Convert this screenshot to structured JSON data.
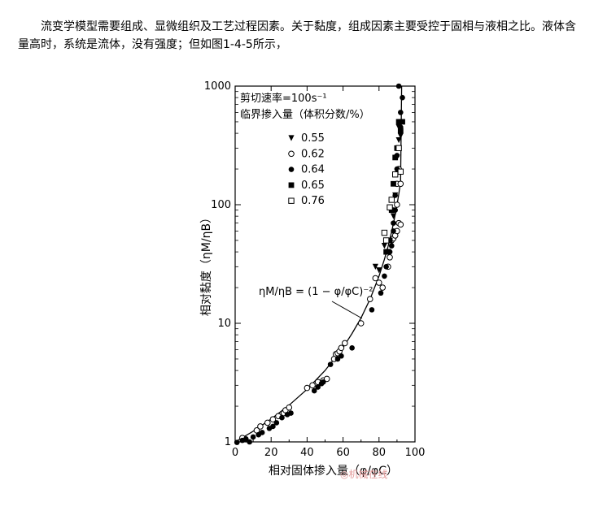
{
  "article": {
    "paragraph": "流变学模型需要组成、显微组织及工艺过程因素。关于黏度，组成因素主要受控于固相与液相之比。液体含量高时，系统是流体，没有强度；但如图1-4-5所示，"
  },
  "watermark": "◎机械在线",
  "chart_data": {
    "type": "scatter",
    "title": "",
    "xlabel": "相对固体掺入量（φ/φC）",
    "ylabel": "相对黏度（ηM/ηB）",
    "xlim": [
      0,
      100
    ],
    "ylim": [
      1,
      1000
    ],
    "yscale": "log",
    "x_ticks": [
      "0",
      "20",
      "40",
      "60",
      "80",
      "100"
    ],
    "y_ticks": [
      "1",
      "10",
      "100",
      "1000"
    ],
    "legend": {
      "placement": "top-left",
      "header_line1": "剪切速率=100s⁻¹",
      "header_line2": "临界掺入量（体积分数/%）",
      "entries": [
        "0.55",
        "0.62",
        "0.64",
        "0.65",
        "0.76"
      ]
    },
    "annotation": "ηM/ηB = (1 − φ/φC)⁻²",
    "curve": {
      "name": "",
      "x": [
        0,
        10,
        20,
        30,
        40,
        50,
        60,
        65,
        70,
        75,
        80,
        83,
        85,
        87,
        88,
        89,
        90,
        91,
        92
      ],
      "y": [
        1,
        1.23,
        1.56,
        2.04,
        2.78,
        4.0,
        6.25,
        8.2,
        11.1,
        16,
        25,
        34.6,
        44.4,
        59.2,
        69.4,
        82.6,
        100,
        123,
        156
      ]
    },
    "series": [
      {
        "name": "0.55",
        "marker": "triangle-down",
        "points": [
          [
            78,
            30
          ],
          [
            80,
            28
          ],
          [
            83,
            45
          ],
          [
            85,
            40
          ],
          [
            88,
            80
          ],
          [
            89,
            120
          ],
          [
            90,
            250
          ],
          [
            91,
            350
          ],
          [
            91,
            450
          ],
          [
            92,
            380
          ]
        ]
      },
      {
        "name": "0.62",
        "marker": "circle-open",
        "points": [
          [
            4,
            1.08
          ],
          [
            12,
            1.25
          ],
          [
            14,
            1.35
          ],
          [
            18,
            1.45
          ],
          [
            21,
            1.55
          ],
          [
            24,
            1.65
          ],
          [
            27,
            1.75
          ],
          [
            28,
            1.85
          ],
          [
            30,
            1.95
          ],
          [
            40,
            2.85
          ],
          [
            43,
            3.0
          ],
          [
            46,
            3.2
          ],
          [
            49,
            3.3
          ],
          [
            51,
            3.4
          ],
          [
            55,
            5.0
          ],
          [
            56,
            5.5
          ],
          [
            57,
            5.6
          ],
          [
            58,
            5.8
          ],
          [
            59,
            6.2
          ],
          [
            61,
            6.8
          ],
          [
            70,
            10
          ],
          [
            75,
            16
          ],
          [
            78,
            24
          ],
          [
            80,
            22
          ],
          [
            82,
            20
          ],
          [
            85,
            30
          ],
          [
            86,
            36
          ],
          [
            87,
            50
          ],
          [
            88,
            52
          ],
          [
            89,
            55
          ],
          [
            90,
            60
          ],
          [
            91,
            70
          ],
          [
            92,
            68
          ],
          [
            90,
            100
          ],
          [
            90,
            150
          ],
          [
            91,
            200
          ],
          [
            92,
            150
          ]
        ]
      },
      {
        "name": "0.64",
        "marker": "circle-filled",
        "points": [
          [
            1,
            0.99
          ],
          [
            4,
            1.03
          ],
          [
            6,
            1.06
          ],
          [
            8,
            1.0
          ],
          [
            10,
            1.1
          ],
          [
            13,
            1.15
          ],
          [
            15,
            1.2
          ],
          [
            19,
            1.3
          ],
          [
            21,
            1.35
          ],
          [
            23,
            1.45
          ],
          [
            26,
            1.6
          ],
          [
            29,
            1.7
          ],
          [
            31,
            1.75
          ],
          [
            44,
            2.7
          ],
          [
            46,
            2.9
          ],
          [
            48,
            3.1
          ],
          [
            49,
            3.2
          ],
          [
            53,
            4.5
          ],
          [
            57,
            5.0
          ],
          [
            59,
            5.3
          ],
          [
            65,
            6.2
          ],
          [
            76,
            13
          ],
          [
            81,
            18
          ],
          [
            83,
            25
          ],
          [
            84,
            30
          ],
          [
            86,
            40
          ],
          [
            87,
            45
          ],
          [
            88,
            60
          ],
          [
            88,
            70
          ],
          [
            89,
            90
          ],
          [
            89,
            120
          ],
          [
            90,
            200
          ],
          [
            90,
            260
          ],
          [
            91,
            300
          ],
          [
            92,
            450
          ],
          [
            92,
            600
          ],
          [
            93,
            800
          ],
          [
            91,
            1000
          ]
        ]
      },
      {
        "name": "0.65",
        "marker": "square-filled",
        "points": [
          [
            84,
            40
          ],
          [
            86,
            50
          ],
          [
            87,
            90
          ],
          [
            88,
            150
          ],
          [
            89,
            250
          ],
          [
            90,
            300
          ],
          [
            91,
            500
          ],
          [
            93,
            500
          ],
          [
            92,
            420
          ]
        ]
      },
      {
        "name": "0.76",
        "marker": "square-open",
        "points": [
          [
            83,
            58
          ],
          [
            84,
            50
          ],
          [
            86,
            95
          ],
          [
            87,
            110
          ],
          [
            89,
            180
          ],
          [
            91,
            300
          ],
          [
            92,
            190
          ]
        ]
      }
    ]
  }
}
